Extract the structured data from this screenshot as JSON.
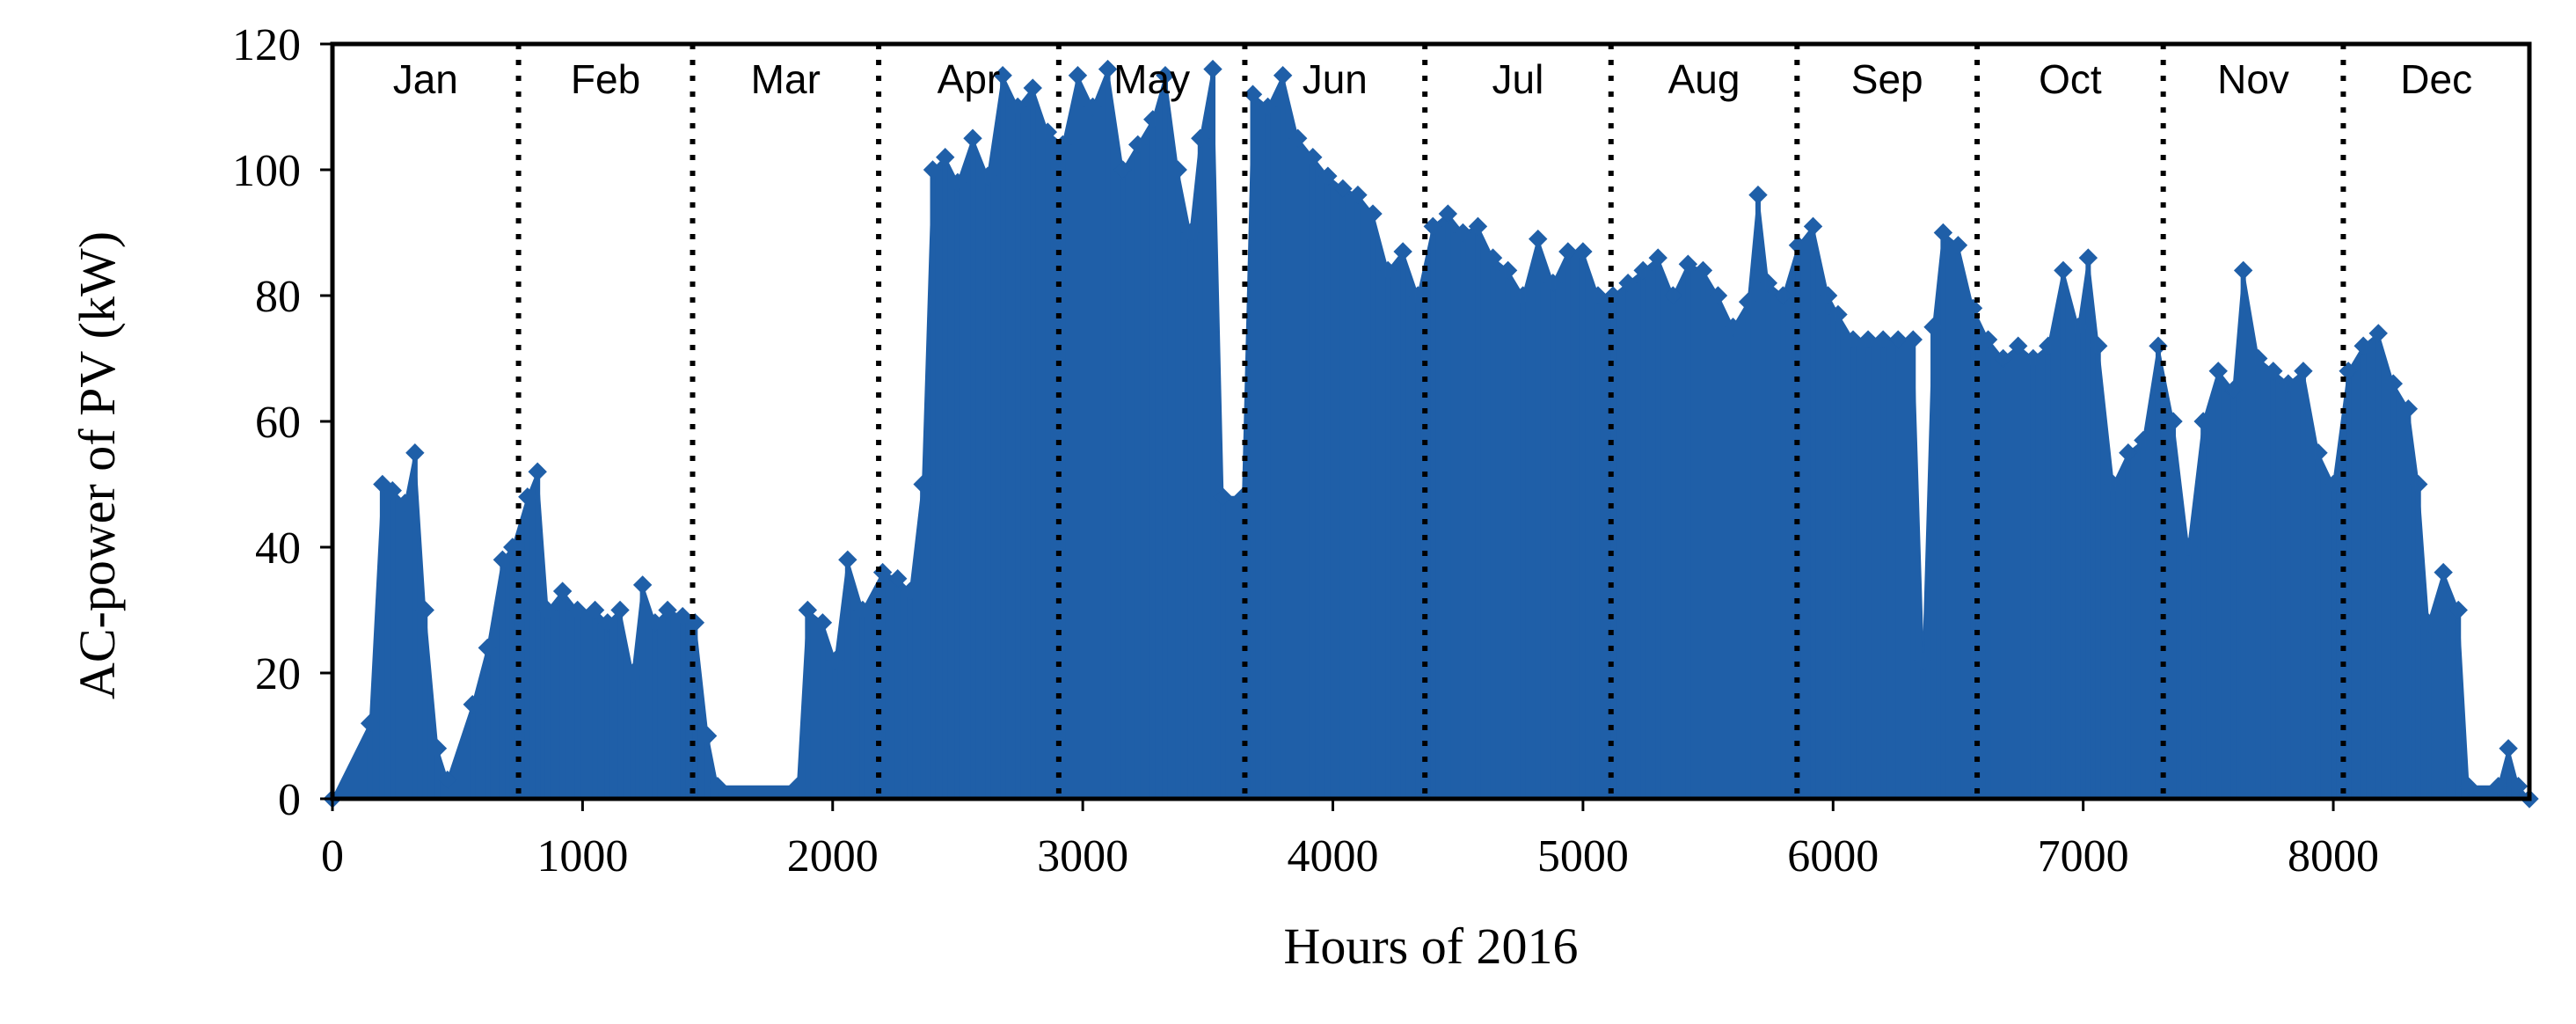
{
  "chart_data": {
    "type": "area",
    "title": "",
    "xlabel": "Hours of  2016",
    "ylabel": "AC-power of PV (kW)",
    "xlim": [
      0,
      8784
    ],
    "ylim": [
      0,
      120
    ],
    "x_ticks": [
      0,
      1000,
      2000,
      3000,
      4000,
      5000,
      6000,
      7000,
      8000
    ],
    "y_ticks": [
      0,
      20,
      40,
      60,
      80,
      100,
      120
    ],
    "grid": false,
    "legend": "none",
    "series_color": "#1f5fa8",
    "month_boundaries": [
      744,
      1440,
      2184,
      2904,
      3648,
      4368,
      5112,
      5856,
      6576,
      7320,
      8040
    ],
    "months": [
      {
        "name": "Jan",
        "start": 0,
        "end": 744
      },
      {
        "name": "Feb",
        "start": 744,
        "end": 1440
      },
      {
        "name": "Mar",
        "start": 1440,
        "end": 2184
      },
      {
        "name": "Apr",
        "start": 2184,
        "end": 2904
      },
      {
        "name": "May",
        "start": 2904,
        "end": 3648
      },
      {
        "name": "Jun",
        "start": 3648,
        "end": 4368
      },
      {
        "name": "Jul",
        "start": 4368,
        "end": 5112
      },
      {
        "name": "Aug",
        "start": 5112,
        "end": 5856
      },
      {
        "name": "Sep",
        "start": 5856,
        "end": 6576
      },
      {
        "name": "Oct",
        "start": 6576,
        "end": 7320
      },
      {
        "name": "Nov",
        "start": 7320,
        "end": 8040
      },
      {
        "name": "Dec",
        "start": 8040,
        "end": 8784
      }
    ],
    "peaks": [
      {
        "x": 0,
        "y": 0
      },
      {
        "x": 150,
        "y": 12
      },
      {
        "x": 200,
        "y": 50
      },
      {
        "x": 240,
        "y": 49
      },
      {
        "x": 290,
        "y": 47
      },
      {
        "x": 330,
        "y": 55
      },
      {
        "x": 370,
        "y": 30
      },
      {
        "x": 420,
        "y": 8
      },
      {
        "x": 460,
        "y": 3
      },
      {
        "x": 560,
        "y": 15
      },
      {
        "x": 620,
        "y": 24
      },
      {
        "x": 680,
        "y": 38
      },
      {
        "x": 720,
        "y": 40
      },
      {
        "x": 780,
        "y": 48
      },
      {
        "x": 820,
        "y": 52
      },
      {
        "x": 860,
        "y": 30
      },
      {
        "x": 920,
        "y": 33
      },
      {
        "x": 980,
        "y": 30
      },
      {
        "x": 1050,
        "y": 30
      },
      {
        "x": 1100,
        "y": 28
      },
      {
        "x": 1150,
        "y": 30
      },
      {
        "x": 1200,
        "y": 20
      },
      {
        "x": 1240,
        "y": 34
      },
      {
        "x": 1290,
        "y": 28
      },
      {
        "x": 1340,
        "y": 30
      },
      {
        "x": 1400,
        "y": 29
      },
      {
        "x": 1450,
        "y": 28
      },
      {
        "x": 1500,
        "y": 10
      },
      {
        "x": 1540,
        "y": 2
      },
      {
        "x": 1860,
        "y": 2
      },
      {
        "x": 1900,
        "y": 30
      },
      {
        "x": 1960,
        "y": 28
      },
      {
        "x": 2010,
        "y": 22
      },
      {
        "x": 2060,
        "y": 38
      },
      {
        "x": 2120,
        "y": 30
      },
      {
        "x": 2200,
        "y": 36
      },
      {
        "x": 2260,
        "y": 35
      },
      {
        "x": 2310,
        "y": 33
      },
      {
        "x": 2360,
        "y": 50
      },
      {
        "x": 2400,
        "y": 100
      },
      {
        "x": 2450,
        "y": 102
      },
      {
        "x": 2500,
        "y": 98
      },
      {
        "x": 2560,
        "y": 105
      },
      {
        "x": 2620,
        "y": 99
      },
      {
        "x": 2680,
        "y": 115
      },
      {
        "x": 2740,
        "y": 110
      },
      {
        "x": 2800,
        "y": 113
      },
      {
        "x": 2860,
        "y": 106
      },
      {
        "x": 2920,
        "y": 104
      },
      {
        "x": 2980,
        "y": 115
      },
      {
        "x": 3040,
        "y": 110
      },
      {
        "x": 3100,
        "y": 116
      },
      {
        "x": 3160,
        "y": 100
      },
      {
        "x": 3220,
        "y": 104
      },
      {
        "x": 3280,
        "y": 108
      },
      {
        "x": 3330,
        "y": 115
      },
      {
        "x": 3380,
        "y": 100
      },
      {
        "x": 3430,
        "y": 90
      },
      {
        "x": 3470,
        "y": 105
      },
      {
        "x": 3520,
        "y": 116
      },
      {
        "x": 3560,
        "y": 48
      },
      {
        "x": 3640,
        "y": 48
      },
      {
        "x": 3680,
        "y": 112
      },
      {
        "x": 3740,
        "y": 110
      },
      {
        "x": 3800,
        "y": 115
      },
      {
        "x": 3860,
        "y": 105
      },
      {
        "x": 3920,
        "y": 102
      },
      {
        "x": 3980,
        "y": 99
      },
      {
        "x": 4040,
        "y": 97
      },
      {
        "x": 4100,
        "y": 96
      },
      {
        "x": 4160,
        "y": 93
      },
      {
        "x": 4220,
        "y": 84
      },
      {
        "x": 4280,
        "y": 87
      },
      {
        "x": 4340,
        "y": 80
      },
      {
        "x": 4400,
        "y": 91
      },
      {
        "x": 4460,
        "y": 93
      },
      {
        "x": 4520,
        "y": 90
      },
      {
        "x": 4580,
        "y": 91
      },
      {
        "x": 4640,
        "y": 86
      },
      {
        "x": 4700,
        "y": 84
      },
      {
        "x": 4760,
        "y": 80
      },
      {
        "x": 4820,
        "y": 89
      },
      {
        "x": 4880,
        "y": 82
      },
      {
        "x": 4940,
        "y": 87
      },
      {
        "x": 5000,
        "y": 87
      },
      {
        "x": 5060,
        "y": 80
      },
      {
        "x": 5120,
        "y": 80
      },
      {
        "x": 5180,
        "y": 82
      },
      {
        "x": 5240,
        "y": 84
      },
      {
        "x": 5300,
        "y": 86
      },
      {
        "x": 5360,
        "y": 80
      },
      {
        "x": 5420,
        "y": 85
      },
      {
        "x": 5480,
        "y": 84
      },
      {
        "x": 5540,
        "y": 80
      },
      {
        "x": 5600,
        "y": 75
      },
      {
        "x": 5660,
        "y": 79
      },
      {
        "x": 5700,
        "y": 96
      },
      {
        "x": 5740,
        "y": 82
      },
      {
        "x": 5800,
        "y": 80
      },
      {
        "x": 5860,
        "y": 88
      },
      {
        "x": 5920,
        "y": 91
      },
      {
        "x": 5980,
        "y": 80
      },
      {
        "x": 6020,
        "y": 77
      },
      {
        "x": 6080,
        "y": 73
      },
      {
        "x": 6140,
        "y": 73
      },
      {
        "x": 6200,
        "y": 73
      },
      {
        "x": 6260,
        "y": 73
      },
      {
        "x": 6320,
        "y": 73
      },
      {
        "x": 6360,
        "y": 22
      },
      {
        "x": 6400,
        "y": 75
      },
      {
        "x": 6440,
        "y": 90
      },
      {
        "x": 6500,
        "y": 88
      },
      {
        "x": 6560,
        "y": 78
      },
      {
        "x": 6620,
        "y": 73
      },
      {
        "x": 6680,
        "y": 70
      },
      {
        "x": 6740,
        "y": 72
      },
      {
        "x": 6800,
        "y": 70
      },
      {
        "x": 6860,
        "y": 72
      },
      {
        "x": 6920,
        "y": 84
      },
      {
        "x": 6980,
        "y": 75
      },
      {
        "x": 7020,
        "y": 86
      },
      {
        "x": 7060,
        "y": 72
      },
      {
        "x": 7120,
        "y": 50
      },
      {
        "x": 7180,
        "y": 55
      },
      {
        "x": 7240,
        "y": 57
      },
      {
        "x": 7300,
        "y": 72
      },
      {
        "x": 7360,
        "y": 60
      },
      {
        "x": 7420,
        "y": 40
      },
      {
        "x": 7480,
        "y": 60
      },
      {
        "x": 7540,
        "y": 68
      },
      {
        "x": 7600,
        "y": 65
      },
      {
        "x": 7640,
        "y": 84
      },
      {
        "x": 7700,
        "y": 70
      },
      {
        "x": 7760,
        "y": 68
      },
      {
        "x": 7820,
        "y": 66
      },
      {
        "x": 7880,
        "y": 68
      },
      {
        "x": 7940,
        "y": 55
      },
      {
        "x": 8000,
        "y": 50
      },
      {
        "x": 8060,
        "y": 68
      },
      {
        "x": 8120,
        "y": 72
      },
      {
        "x": 8180,
        "y": 74
      },
      {
        "x": 8240,
        "y": 66
      },
      {
        "x": 8300,
        "y": 62
      },
      {
        "x": 8340,
        "y": 50
      },
      {
        "x": 8380,
        "y": 28
      },
      {
        "x": 8440,
        "y": 36
      },
      {
        "x": 8500,
        "y": 30
      },
      {
        "x": 8540,
        "y": 2
      },
      {
        "x": 8660,
        "y": 2
      },
      {
        "x": 8700,
        "y": 8
      },
      {
        "x": 8740,
        "y": 2
      },
      {
        "x": 8784,
        "y": 0
      }
    ]
  }
}
